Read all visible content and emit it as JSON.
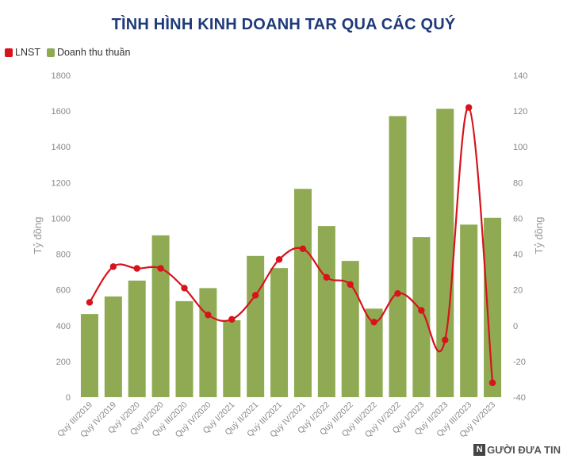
{
  "chart_data": {
    "type": "bar",
    "title": "TÌNH HÌNH KINH DOANH TAR QUA CÁC QUÝ",
    "ylabel": "Tỷ đồng",
    "y2label": "Tỷ đồng",
    "ylim": [
      0,
      1800
    ],
    "y2lim": [
      -40,
      140
    ],
    "yticks": [
      "0",
      "200",
      "400",
      "600",
      "800",
      "1000",
      "1200",
      "1400",
      "1600",
      "1800"
    ],
    "y2ticks": [
      "-40",
      "-20",
      "0",
      "20",
      "40",
      "60",
      "80",
      "100",
      "120",
      "140"
    ],
    "categories": [
      "Quý III/2019",
      "Quý IV/2019",
      "Quý I/2020",
      "Quý II/2020",
      "Quý III/2020",
      "Quý IV/2020",
      "Quý I/2021",
      "Quý II/2021",
      "Quý III/2021",
      "Quý IV/2021",
      "Quý I/2022",
      "Quý II/2022",
      "Quý III/2022",
      "Quý IV/2022",
      "Quý I/2023",
      "Quý II/2023",
      "Quý III/2023",
      "Quý IV/2023"
    ],
    "series": [
      {
        "name": "Doanh thu thuần",
        "type": "bar",
        "axis": "left",
        "color": "#8faa52",
        "values": [
          465,
          563,
          652,
          905,
          537,
          610,
          430,
          790,
          722,
          1165,
          957,
          762,
          495,
          1572,
          895,
          1613,
          965,
          1003
        ]
      },
      {
        "name": "LNST",
        "type": "line",
        "axis": "right",
        "color": "#d7131b",
        "values": [
          13,
          33,
          32,
          32,
          21,
          6,
          3.5,
          17,
          37,
          43,
          27,
          23,
          2,
          18,
          8.5,
          -8,
          122,
          -32
        ]
      }
    ],
    "legend_position": "top-left",
    "grid": false
  },
  "watermark": {
    "box": "N",
    "text": "GƯỜI ĐƯA TIN"
  }
}
